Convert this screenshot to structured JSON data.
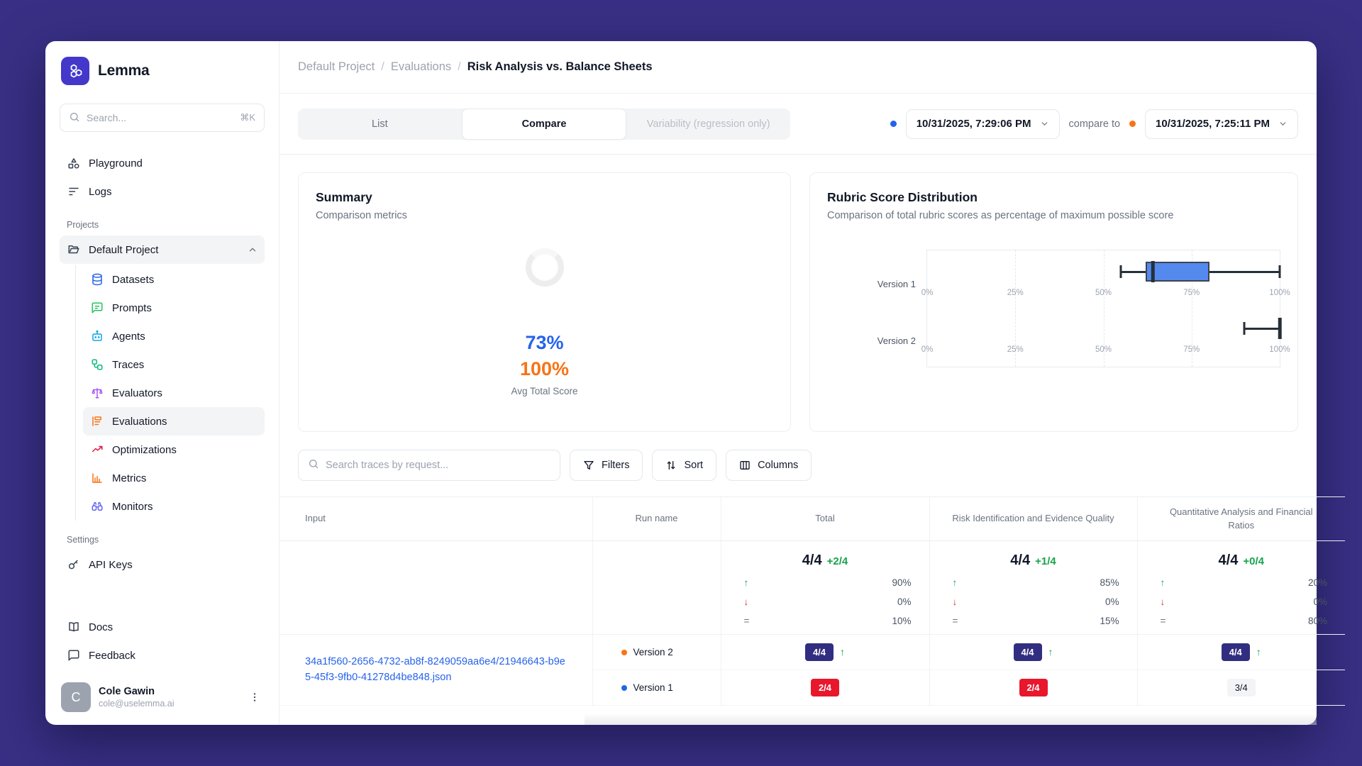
{
  "colors": {
    "background": "#393085",
    "brand": "#4338ca",
    "primary_blue": "#2563eb",
    "accent_orange": "#f97316",
    "green": "#16a34a",
    "red_badge": "#e8172c",
    "navy_badge": "#312e81",
    "box_fill": "#5489ee",
    "link": "#2563eb"
  },
  "sidebar": {
    "brand": "Lemma",
    "brand_icon": "cubes-logo-icon",
    "search": {
      "placeholder": "Search...",
      "shortcut": "⌘K",
      "icon": "search-icon"
    },
    "main_items": [
      {
        "label": "Playground",
        "icon": "shapes-icon"
      },
      {
        "label": "Logs",
        "icon": "logs-icon"
      }
    ],
    "projects_label": "Projects",
    "project": {
      "label": "Default Project",
      "icon": "folder-open-icon",
      "chevron": "chevron-up-icon"
    },
    "project_items": [
      {
        "label": "Datasets",
        "icon": "database-icon",
        "color": "#2563eb"
      },
      {
        "label": "Prompts",
        "icon": "message-square-icon",
        "color": "#22c55e"
      },
      {
        "label": "Agents",
        "icon": "bot-icon",
        "color": "#0ea5e9"
      },
      {
        "label": "Traces",
        "icon": "workflow-icon",
        "color": "#10b981"
      },
      {
        "label": "Evaluators",
        "icon": "scale-icon",
        "color": "#a855f7"
      },
      {
        "label": "Evaluations",
        "icon": "list-ordered-icon",
        "color": "#f97316",
        "active": true
      },
      {
        "label": "Optimizations",
        "icon": "trending-up-icon",
        "color": "#e11d48"
      },
      {
        "label": "Metrics",
        "icon": "bar-chart-icon",
        "color": "#f97316"
      },
      {
        "label": "Monitors",
        "icon": "binoculars-icon",
        "color": "#6366f1"
      }
    ],
    "settings_label": "Settings",
    "settings_items": [
      {
        "label": "API Keys",
        "icon": "key-icon"
      }
    ],
    "footer_items": [
      {
        "label": "Docs",
        "icon": "book-open-icon"
      },
      {
        "label": "Feedback",
        "icon": "message-icon"
      }
    ],
    "user": {
      "initial": "C",
      "name": "Cole Gawin",
      "email": "cole@uselemma.ai"
    }
  },
  "breadcrumb": {
    "separator": "/",
    "items": [
      "Default Project",
      "Evaluations",
      "Risk Analysis vs. Balance Sheets"
    ]
  },
  "tabs": [
    {
      "label": "List",
      "state": "inactive"
    },
    {
      "label": "Compare",
      "state": "active"
    },
    {
      "label": "Variability (regression only)",
      "state": "disabled"
    }
  ],
  "compare_bar": {
    "primary_date": "10/31/2025, 7:29:06 PM",
    "primary_dot_color": "#2563eb",
    "label": "compare to",
    "secondary_date": "10/31/2025, 7:25:11 PM",
    "secondary_dot_color": "#f97316"
  },
  "summary": {
    "title": "Summary",
    "subtitle": "Comparison metrics",
    "value_primary": "73%",
    "value_secondary": "100%",
    "caption": "Avg Total Score"
  },
  "chart_data": {
    "type": "boxplot",
    "title": "Rubric Score Distribution",
    "subtitle": "Comparison of total rubric scores as percentage of maximum possible score",
    "orientation": "horizontal",
    "categories": [
      "Version 1",
      "Version 2"
    ],
    "series": [
      {
        "name": "Version 1",
        "min": 55,
        "q1": 62,
        "median": 64,
        "q3": 80,
        "max": 100
      },
      {
        "name": "Version 2",
        "min": 90,
        "q1": 100,
        "median": 100,
        "q3": 100,
        "max": 100
      }
    ],
    "xlim": [
      0,
      100
    ],
    "ticks": [
      {
        "label": "0%",
        "value": 0
      },
      {
        "label": "25%",
        "value": 25
      },
      {
        "label": "50%",
        "value": 50
      },
      {
        "label": "75%",
        "value": 75
      },
      {
        "label": "100%",
        "value": 100
      }
    ],
    "grid": "dashed-vertical"
  },
  "toolbar": {
    "search_placeholder": "Search traces by request...",
    "filters_label": "Filters",
    "sort_label": "Sort",
    "columns_label": "Columns"
  },
  "table": {
    "headers": {
      "input": "Input",
      "run_name": "Run name",
      "total": "Total",
      "risk": "Risk Identification and Evidence Quality",
      "quant": "Quantitative Analysis and Financial Ratios"
    },
    "legend": {
      "up": "↑",
      "down": "↓",
      "same": "="
    },
    "stats": {
      "total": {
        "score": "4/4",
        "delta": "+2/4",
        "up": "90%",
        "down": "0%",
        "same": "10%"
      },
      "risk": {
        "score": "4/4",
        "delta": "+1/4",
        "up": "85%",
        "down": "0%",
        "same": "15%"
      },
      "quant": {
        "score": "4/4",
        "delta": "+0/4",
        "up": "20%",
        "down": "0%",
        "same": "80%"
      }
    },
    "input_file": "34a1f560-2656-4732-ab8f-8249059aa6e4/21946643-b9e5-45f3-9fb0-41278d4be848.json",
    "rows": [
      {
        "run": "Version 2",
        "dot": "orange",
        "total": "4/4",
        "risk": "4/4",
        "quant": "4/4"
      },
      {
        "run": "Version 1",
        "dot": "blue",
        "total": "2/4",
        "risk": "2/4",
        "quant": "3/4"
      }
    ]
  }
}
